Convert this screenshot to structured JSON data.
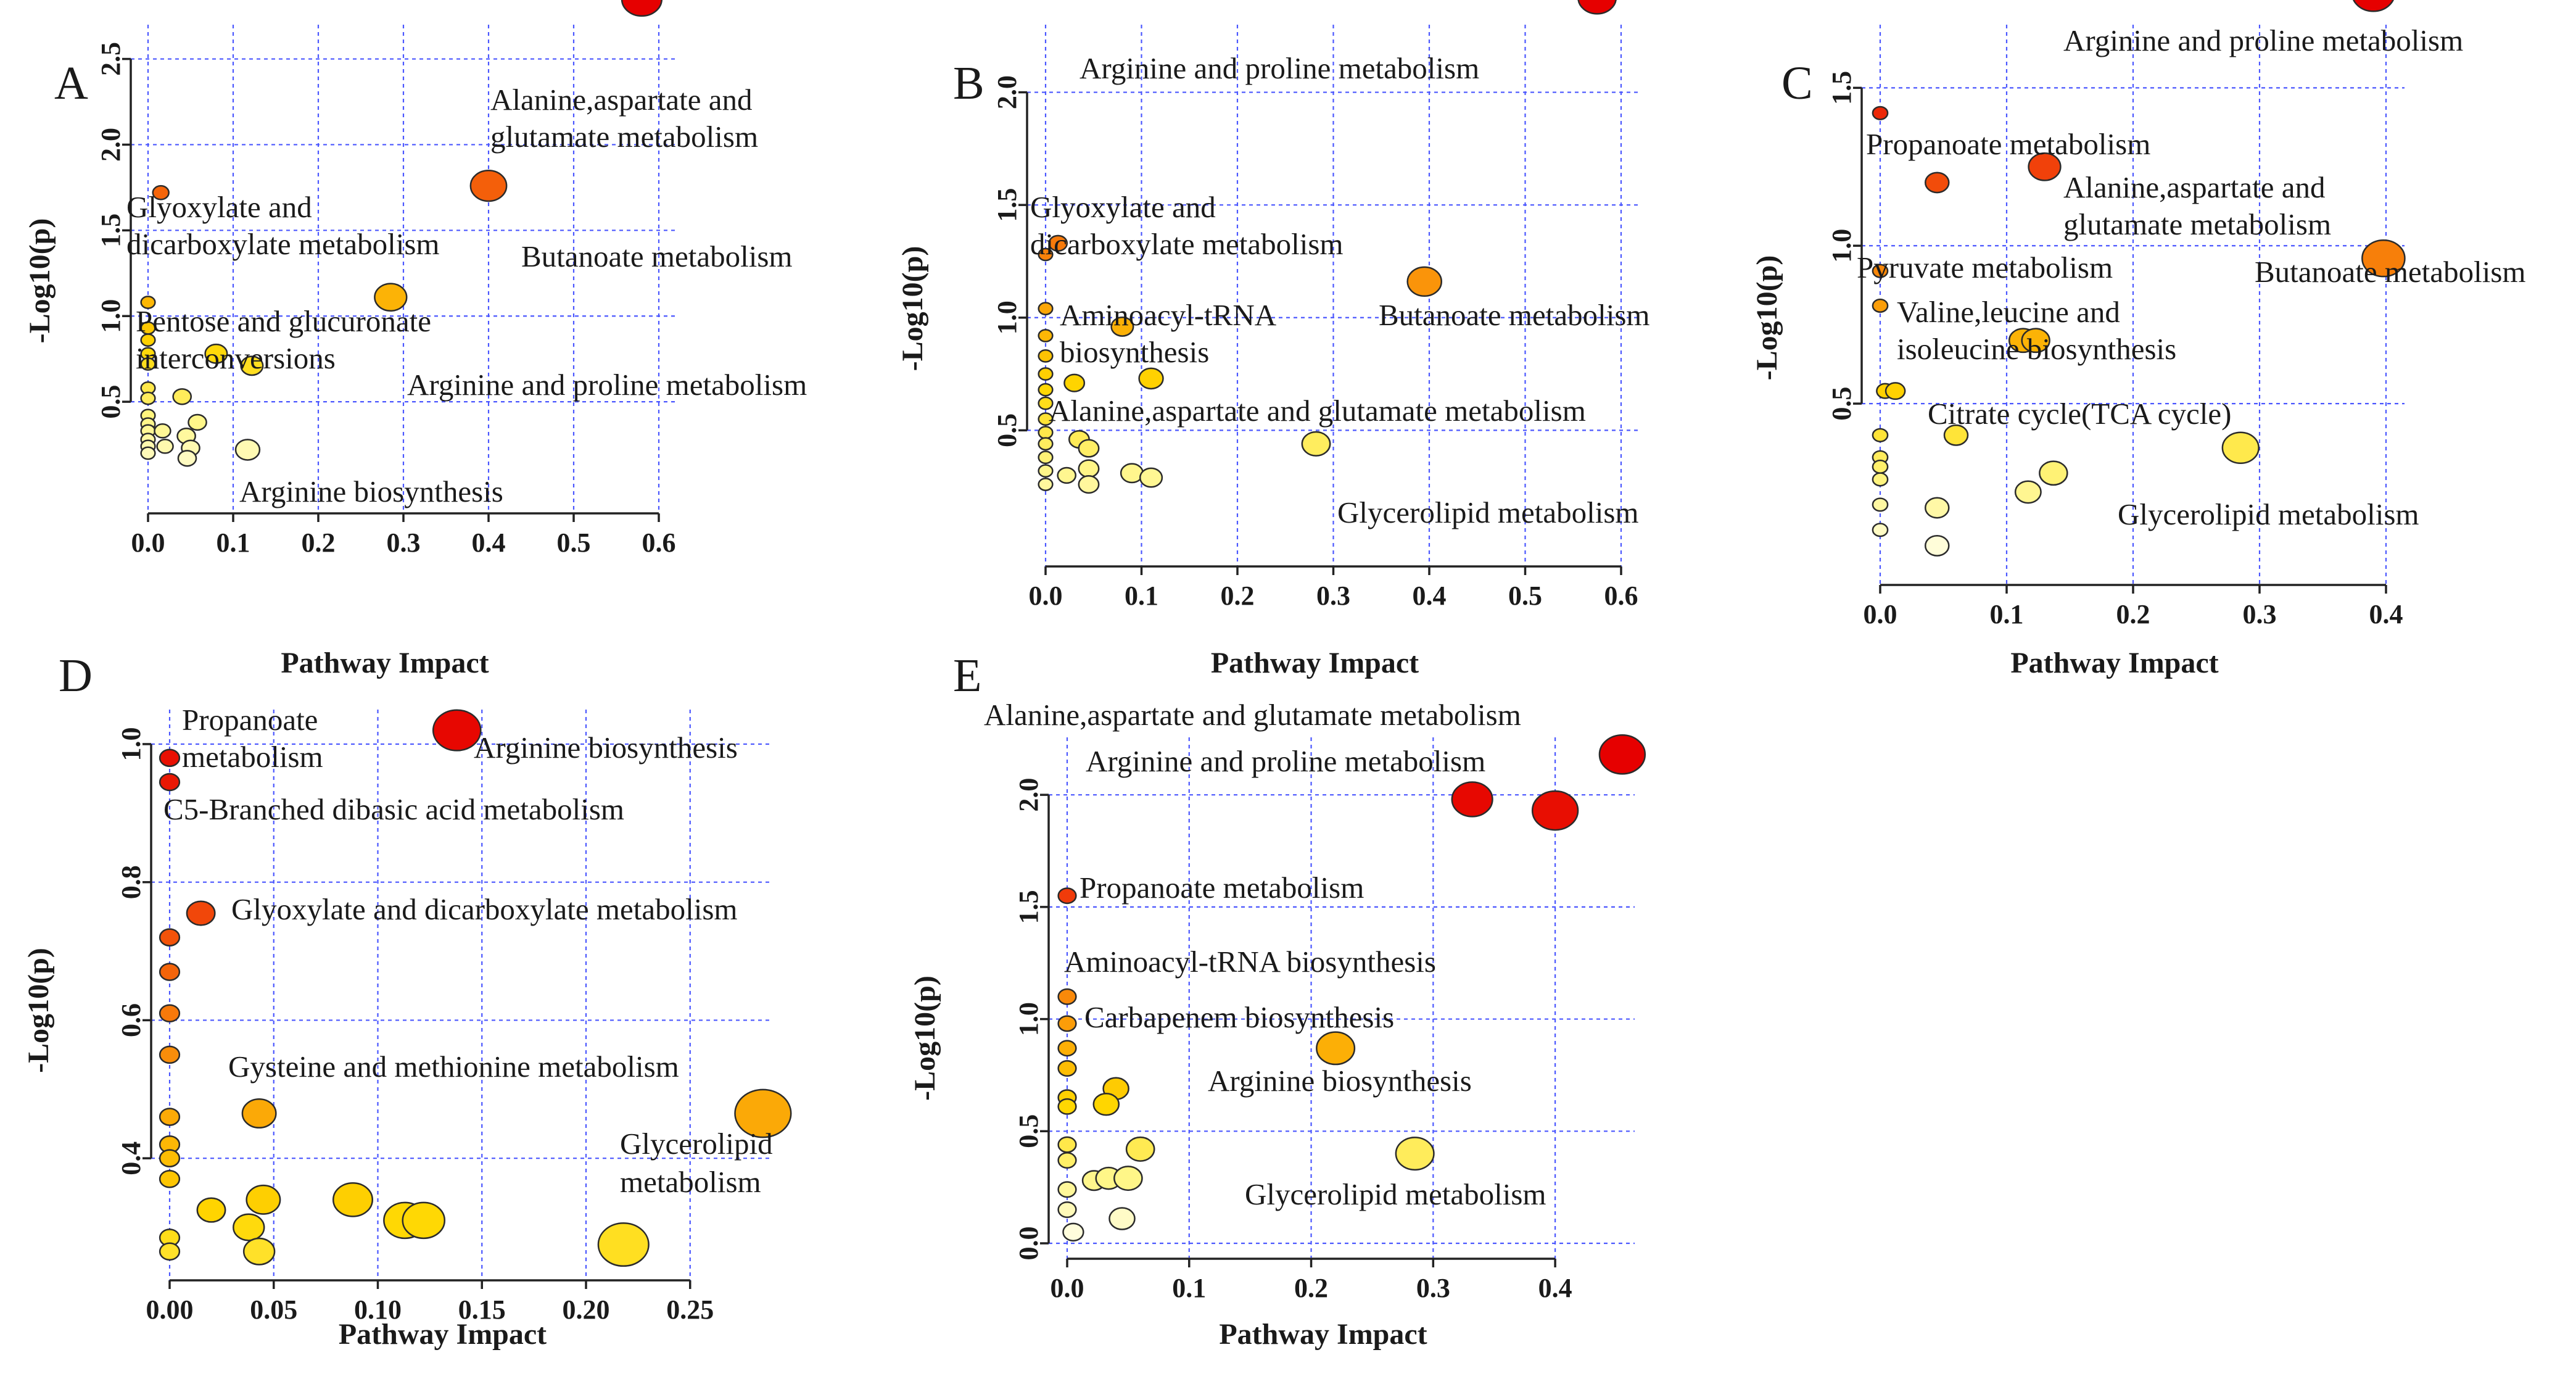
{
  "chart_data": [
    {
      "type": "scatter",
      "panel": "A",
      "xlabel": "Pathway Impact",
      "ylabel": "-Log10(p)",
      "xlim": [
        0,
        0.6
      ],
      "ylim": [
        0,
        2.7
      ],
      "xticks": [
        "0.0",
        "0.1",
        "0.2",
        "0.3",
        "0.4",
        "0.5",
        "0.6"
      ],
      "yticks": [
        "0.5",
        "1.0",
        "1.5",
        "2.0",
        "2.5"
      ],
      "points": [
        {
          "x": 0.58,
          "y": 2.85,
          "r": 1.0,
          "label": "Alanine,aspartate and glutamate metabolism"
        },
        {
          "x": 0.4,
          "y": 1.76,
          "r": 0.9,
          "label": "Butanoate metabolism"
        },
        {
          "x": 0.285,
          "y": 1.11,
          "r": 0.8,
          "label": "Arginine and proline metabolism"
        },
        {
          "x": 0.015,
          "y": 1.72,
          "r": 0.4,
          "label": "Glyoxylate and dicarboxylate metabolism"
        },
        {
          "x": 0.0,
          "y": 1.08,
          "r": 0.35,
          "label": "Pentose and glucuronate interconversions"
        },
        {
          "x": 0.0,
          "y": 0.93,
          "r": 0.35
        },
        {
          "x": 0.0,
          "y": 0.86,
          "r": 0.35
        },
        {
          "x": 0.0,
          "y": 0.78,
          "r": 0.35
        },
        {
          "x": 0.0,
          "y": 0.72,
          "r": 0.35
        },
        {
          "x": 0.0,
          "y": 0.58,
          "r": 0.35
        },
        {
          "x": 0.0,
          "y": 0.52,
          "r": 0.35
        },
        {
          "x": 0.08,
          "y": 0.78,
          "r": 0.55
        },
        {
          "x": 0.122,
          "y": 0.71,
          "r": 0.55
        },
        {
          "x": 0.04,
          "y": 0.53,
          "r": 0.45
        },
        {
          "x": 0.058,
          "y": 0.38,
          "r": 0.45,
          "label": "Arginine biosynthesis"
        },
        {
          "x": 0.0,
          "y": 0.42,
          "r": 0.35
        },
        {
          "x": 0.0,
          "y": 0.37,
          "r": 0.35
        },
        {
          "x": 0.0,
          "y": 0.33,
          "r": 0.35
        },
        {
          "x": 0.0,
          "y": 0.28,
          "r": 0.35
        },
        {
          "x": 0.0,
          "y": 0.24,
          "r": 0.35
        },
        {
          "x": 0.0,
          "y": 0.2,
          "r": 0.35
        },
        {
          "x": 0.017,
          "y": 0.33,
          "r": 0.4
        },
        {
          "x": 0.02,
          "y": 0.24,
          "r": 0.4
        },
        {
          "x": 0.045,
          "y": 0.3,
          "r": 0.45
        },
        {
          "x": 0.05,
          "y": 0.23,
          "r": 0.45
        },
        {
          "x": 0.046,
          "y": 0.17,
          "r": 0.45
        },
        {
          "x": 0.117,
          "y": 0.22,
          "r": 0.6
        }
      ]
    },
    {
      "type": "scatter",
      "panel": "B",
      "xlabel": "Pathway Impact",
      "ylabel": "-Log10(p)",
      "xlim": [
        0,
        0.6
      ],
      "ylim": [
        0,
        2.3
      ],
      "xticks": [
        "0.0",
        "0.1",
        "0.2",
        "0.3",
        "0.4",
        "0.5",
        "0.6"
      ],
      "yticks": [
        "0.5",
        "1.0",
        "1.5",
        "2.0"
      ],
      "points": [
        {
          "x": 0.575,
          "y": 2.42,
          "r": 0.95,
          "label": "Arginine and proline metabolism"
        },
        {
          "x": 0.395,
          "y": 1.16,
          "r": 0.85,
          "label": "Butanoate metabolism"
        },
        {
          "x": 0.013,
          "y": 1.33,
          "r": 0.45,
          "label": "Aminoacyl-tRNA biosynthesis"
        },
        {
          "x": 0.0,
          "y": 1.28,
          "r": 0.35
        },
        {
          "x": 0.0,
          "y": 1.04,
          "r": 0.35
        },
        {
          "x": 0.08,
          "y": 0.96,
          "r": 0.55,
          "label": "Alanine,aspartate and glutamate metabolism"
        },
        {
          "x": 0.0,
          "y": 0.92,
          "r": 0.35
        },
        {
          "x": 0.0,
          "y": 0.83,
          "r": 0.35
        },
        {
          "x": 0.0,
          "y": 0.75,
          "r": 0.35
        },
        {
          "x": 0.0,
          "y": 0.68,
          "r": 0.35
        },
        {
          "x": 0.0,
          "y": 0.62,
          "r": 0.35
        },
        {
          "x": 0.0,
          "y": 0.55,
          "r": 0.35
        },
        {
          "x": 0.0,
          "y": 0.49,
          "r": 0.35
        },
        {
          "x": 0.0,
          "y": 0.44,
          "r": 0.35
        },
        {
          "x": 0.0,
          "y": 0.38,
          "r": 0.35
        },
        {
          "x": 0.0,
          "y": 0.32,
          "r": 0.35
        },
        {
          "x": 0.0,
          "y": 0.26,
          "r": 0.35
        },
        {
          "x": 0.03,
          "y": 0.71,
          "r": 0.5
        },
        {
          "x": 0.11,
          "y": 0.73,
          "r": 0.6
        },
        {
          "x": 0.035,
          "y": 0.46,
          "r": 0.5
        },
        {
          "x": 0.045,
          "y": 0.42,
          "r": 0.5
        },
        {
          "x": 0.282,
          "y": 0.44,
          "r": 0.7,
          "label": "Glycerolipid metabolism"
        },
        {
          "x": 0.045,
          "y": 0.33,
          "r": 0.5
        },
        {
          "x": 0.022,
          "y": 0.3,
          "r": 0.45
        },
        {
          "x": 0.045,
          "y": 0.26,
          "r": 0.5
        },
        {
          "x": 0.09,
          "y": 0.31,
          "r": 0.55
        },
        {
          "x": 0.11,
          "y": 0.29,
          "r": 0.55
        }
      ]
    },
    {
      "type": "scatter",
      "panel": "C",
      "xlabel": "Pathway Impact",
      "ylabel": "-Log10(p)",
      "xlim": [
        0,
        0.4
      ],
      "ylim": [
        0,
        1.7
      ],
      "xticks": [
        "0.0",
        "0.1",
        "0.2",
        "0.3",
        "0.4"
      ],
      "yticks": [
        "0.5",
        "1.0",
        "1.5"
      ],
      "points": [
        {
          "x": 0.39,
          "y": 1.8,
          "r": 1.0,
          "label": "Arginine and proline metabolism"
        },
        {
          "x": 0.0,
          "y": 1.42,
          "r": 0.35,
          "label": "Propanoate metabolism"
        },
        {
          "x": 0.13,
          "y": 1.25,
          "r": 0.75,
          "label": "Alanine,aspartate and glutamate metabolism"
        },
        {
          "x": 0.045,
          "y": 1.2,
          "r": 0.55,
          "label": "Pyruvate metabolism"
        },
        {
          "x": 0.398,
          "y": 0.96,
          "r": 1.0,
          "label": "Butanoate metabolism"
        },
        {
          "x": 0.0,
          "y": 0.92,
          "r": 0.35,
          "label": "Valine,leucine and isoleucine biosynthesis"
        },
        {
          "x": 0.0,
          "y": 0.81,
          "r": 0.35
        },
        {
          "x": 0.113,
          "y": 0.7,
          "r": 0.65
        },
        {
          "x": 0.123,
          "y": 0.7,
          "r": 0.65
        },
        {
          "x": 0.004,
          "y": 0.54,
          "r": 0.4,
          "label": "Citrate cycle(TCA cycle)"
        },
        {
          "x": 0.012,
          "y": 0.54,
          "r": 0.45
        },
        {
          "x": 0.06,
          "y": 0.4,
          "r": 0.55
        },
        {
          "x": 0.0,
          "y": 0.4,
          "r": 0.35
        },
        {
          "x": 0.0,
          "y": 0.33,
          "r": 0.35
        },
        {
          "x": 0.0,
          "y": 0.3,
          "r": 0.35
        },
        {
          "x": 0.0,
          "y": 0.26,
          "r": 0.35
        },
        {
          "x": 0.0,
          "y": 0.18,
          "r": 0.35
        },
        {
          "x": 0.0,
          "y": 0.1,
          "r": 0.35
        },
        {
          "x": 0.285,
          "y": 0.36,
          "r": 0.85,
          "label": "Glycerolipid metabolism"
        },
        {
          "x": 0.137,
          "y": 0.28,
          "r": 0.65
        },
        {
          "x": 0.117,
          "y": 0.22,
          "r": 0.6
        },
        {
          "x": 0.045,
          "y": 0.17,
          "r": 0.55
        },
        {
          "x": 0.045,
          "y": 0.05,
          "r": 0.55
        }
      ]
    },
    {
      "type": "scatter",
      "panel": "D",
      "xlabel": "Pathway Impact",
      "ylabel": "-Log10(p)",
      "xlim": [
        0,
        0.28
      ],
      "ylim": [
        0.25,
        1.05
      ],
      "xticks": [
        "0.00",
        "0.05",
        "0.10",
        "0.15",
        "0.20",
        "0.25"
      ],
      "yticks": [
        "0.4",
        "0.6",
        "0.8",
        "1.0"
      ],
      "points": [
        {
          "x": 0.138,
          "y": 1.02,
          "r": 0.85,
          "label": "Arginine biosynthesis"
        },
        {
          "x": 0.0,
          "y": 0.98,
          "r": 0.35,
          "label": "Propanoate metabolism"
        },
        {
          "x": 0.0,
          "y": 0.945,
          "r": 0.35,
          "label": "C5-Branched dibasic acid metabolism"
        },
        {
          "x": 0.015,
          "y": 0.755,
          "r": 0.5,
          "label": "Glyoxylate and dicarboxylate metabolism"
        },
        {
          "x": 0.0,
          "y": 0.72,
          "r": 0.35
        },
        {
          "x": 0.0,
          "y": 0.67,
          "r": 0.35
        },
        {
          "x": 0.0,
          "y": 0.61,
          "r": 0.35
        },
        {
          "x": 0.0,
          "y": 0.55,
          "r": 0.35
        },
        {
          "x": 0.043,
          "y": 0.465,
          "r": 0.6,
          "label": "Gysteine and methionine metabolism"
        },
        {
          "x": 0.285,
          "y": 0.465,
          "r": 1.0,
          "label": "Glycerolipid metabolism"
        },
        {
          "x": 0.0,
          "y": 0.46,
          "r": 0.35
        },
        {
          "x": 0.0,
          "y": 0.42,
          "r": 0.35
        },
        {
          "x": 0.0,
          "y": 0.4,
          "r": 0.35
        },
        {
          "x": 0.0,
          "y": 0.37,
          "r": 0.35
        },
        {
          "x": 0.045,
          "y": 0.34,
          "r": 0.6
        },
        {
          "x": 0.088,
          "y": 0.34,
          "r": 0.7
        },
        {
          "x": 0.02,
          "y": 0.325,
          "r": 0.5
        },
        {
          "x": 0.113,
          "y": 0.31,
          "r": 0.75
        },
        {
          "x": 0.122,
          "y": 0.31,
          "r": 0.75
        },
        {
          "x": 0.038,
          "y": 0.3,
          "r": 0.55
        },
        {
          "x": 0.0,
          "y": 0.285,
          "r": 0.35
        },
        {
          "x": 0.0,
          "y": 0.265,
          "r": 0.35
        },
        {
          "x": 0.043,
          "y": 0.265,
          "r": 0.55
        },
        {
          "x": 0.218,
          "y": 0.275,
          "r": 0.9
        }
      ]
    },
    {
      "type": "scatter",
      "panel": "E",
      "xlabel": "Pathway Impact",
      "ylabel": "-Log10(p)",
      "xlim": [
        0,
        0.45
      ],
      "ylim": [
        0,
        2.05
      ],
      "xticks": [
        "0.0",
        "0.1",
        "0.2",
        "0.3",
        "0.4"
      ],
      "yticks": [
        "0.0",
        "0.5",
        "1.0",
        "1.5",
        "2.0"
      ],
      "points": [
        {
          "x": 0.455,
          "y": 2.18,
          "r": 0.9,
          "label": "Alanine,aspartate and glutamate metabolism"
        },
        {
          "x": 0.332,
          "y": 1.98,
          "r": 0.8
        },
        {
          "x": 0.4,
          "y": 1.93,
          "r": 0.9,
          "label": "Arginine and proline metabolism"
        },
        {
          "x": 0.0,
          "y": 1.55,
          "r": 0.35,
          "label": "Propanoate metabolism"
        },
        {
          "x": 0.0,
          "y": 1.1,
          "r": 0.35,
          "label": "Aminoacyl-tRNA biosynthesis"
        },
        {
          "x": 0.0,
          "y": 0.98,
          "r": 0.35,
          "label": "Carbapenem biosynthesis"
        },
        {
          "x": 0.22,
          "y": 0.87,
          "r": 0.75,
          "label": "Arginine biosynthesis"
        },
        {
          "x": 0.0,
          "y": 0.87,
          "r": 0.35
        },
        {
          "x": 0.0,
          "y": 0.78,
          "r": 0.35
        },
        {
          "x": 0.04,
          "y": 0.69,
          "r": 0.5
        },
        {
          "x": 0.0,
          "y": 0.65,
          "r": 0.35
        },
        {
          "x": 0.0,
          "y": 0.61,
          "r": 0.35
        },
        {
          "x": 0.032,
          "y": 0.62,
          "r": 0.5
        },
        {
          "x": 0.0,
          "y": 0.44,
          "r": 0.35
        },
        {
          "x": 0.06,
          "y": 0.42,
          "r": 0.55
        },
        {
          "x": 0.285,
          "y": 0.4,
          "r": 0.75,
          "label": "Glycerolipid metabolism"
        },
        {
          "x": 0.0,
          "y": 0.37,
          "r": 0.35
        },
        {
          "x": 0.0,
          "y": 0.24,
          "r": 0.35
        },
        {
          "x": 0.022,
          "y": 0.28,
          "r": 0.45
        },
        {
          "x": 0.034,
          "y": 0.29,
          "r": 0.5
        },
        {
          "x": 0.05,
          "y": 0.29,
          "r": 0.55
        },
        {
          "x": 0.0,
          "y": 0.15,
          "r": 0.35
        },
        {
          "x": 0.045,
          "y": 0.11,
          "r": 0.5
        },
        {
          "x": 0.005,
          "y": 0.05,
          "r": 0.4
        }
      ]
    }
  ]
}
